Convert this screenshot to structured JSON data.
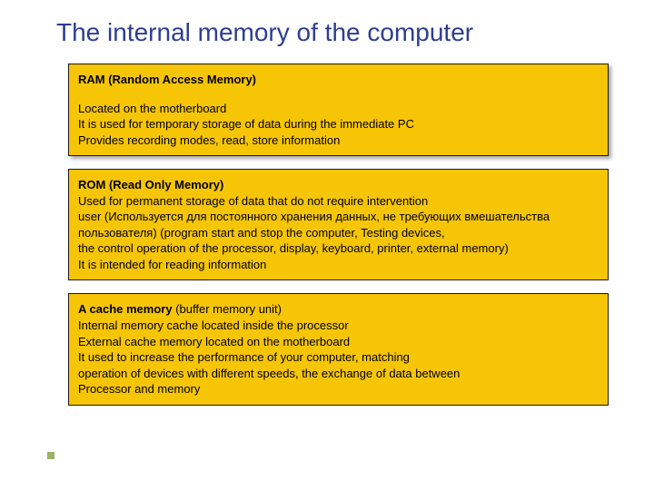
{
  "slide": {
    "title": "The internal memory of the computer",
    "bullet_color": "#9fb06a",
    "title_color": "#2e3e8f",
    "box_bg": "#f6c506",
    "box_border": "#1a1a1a",
    "boxes": [
      {
        "heading": "RAM (Random Access Memory)",
        "lines": [
          "Located on the motherboard",
          "It is used for temporary storage of data during the immediate PC",
          "Provides recording modes, read, store information"
        ]
      },
      {
        "heading": "ROM (Read Only Memory)",
        "lines": [
          "Used for permanent storage of data that do not require intervention",
          "  user (Используется для постоянного хранения данных, не требующих вмешательства",
          " пользователя) (program start and stop the computer, Testing devices,",
          " the control operation of the processor, display, keyboard, printer, external memory)",
          "It is intended for reading information"
        ]
      },
      {
        "heading_inline": "A cache memory",
        "heading_rest": " (buffer memory unit)",
        "lines": [
          "Internal memory cache located inside the processor",
          "External cache memory located on the motherboard",
          "It used to increase the performance of your computer, matching",
          "operation of devices with different speeds, the exchange of data between",
          "Processor and memory"
        ]
      }
    ]
  }
}
